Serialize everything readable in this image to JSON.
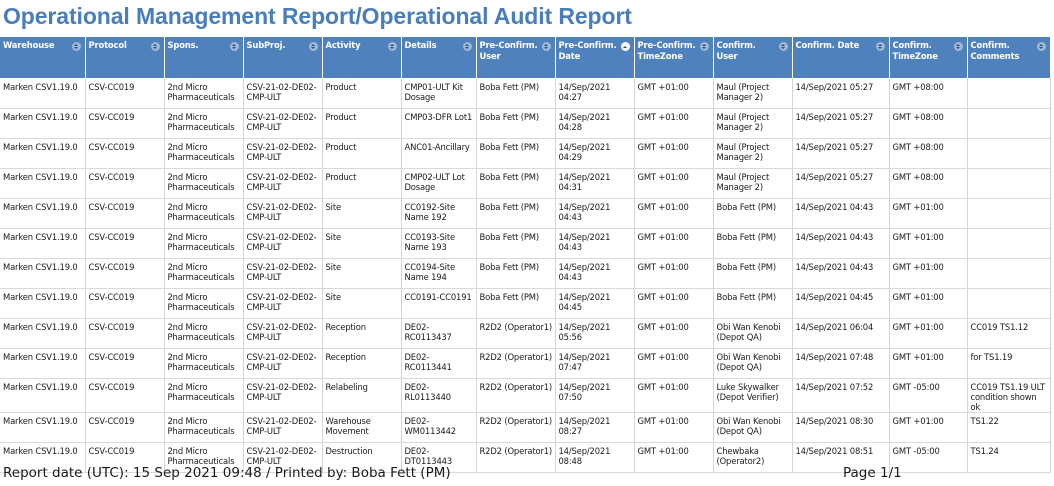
{
  "report": {
    "title": "Operational Management Report/Operational Audit Report"
  },
  "columns": [
    {
      "label": "Warehouse"
    },
    {
      "label": "Protocol"
    },
    {
      "label": "Spons."
    },
    {
      "label": "SubProj."
    },
    {
      "label": "Activity"
    },
    {
      "label": "Details"
    },
    {
      "label": "Pre-Confirm. User"
    },
    {
      "label": "Pre-Confirm. Date",
      "sorted": true
    },
    {
      "label": "Pre-Confirm. TimeZone"
    },
    {
      "label": "Confirm. User"
    },
    {
      "label": "Confirm. Date"
    },
    {
      "label": "Confirm. TimeZone"
    },
    {
      "label": "Confirm. Comments"
    }
  ],
  "rows": [
    [
      "Marken CSV1.19.0",
      "CSV-CC019",
      "2nd Micro Pharmaceuticals",
      "CSV-21-02-DE02-CMP-ULT",
      "Product",
      "CMP01-ULT Kit Dosage",
      "Boba Fett (PM)",
      "14/Sep/2021 04:27",
      "GMT +01:00",
      "Maul (Project Manager 2)",
      "14/Sep/2021 05:27",
      "GMT +08:00",
      ""
    ],
    [
      "Marken CSV1.19.0",
      "CSV-CC019",
      "2nd Micro Pharmaceuticals",
      "CSV-21-02-DE02-CMP-ULT",
      "Product",
      "CMP03-DFR Lot1",
      "Boba Fett (PM)",
      "14/Sep/2021 04:28",
      "GMT +01:00",
      "Maul (Project Manager 2)",
      "14/Sep/2021 05:27",
      "GMT +08:00",
      ""
    ],
    [
      "Marken CSV1.19.0",
      "CSV-CC019",
      "2nd Micro Pharmaceuticals",
      "CSV-21-02-DE02-CMP-ULT",
      "Product",
      "ANC01-Ancillary",
      "Boba Fett (PM)",
      "14/Sep/2021 04:29",
      "GMT +01:00",
      "Maul (Project Manager 2)",
      "14/Sep/2021 05:27",
      "GMT +08:00",
      ""
    ],
    [
      "Marken CSV1.19.0",
      "CSV-CC019",
      "2nd Micro Pharmaceuticals",
      "CSV-21-02-DE02-CMP-ULT",
      "Product",
      "CMP02-ULT Lot Dosage",
      "Boba Fett (PM)",
      "14/Sep/2021 04:31",
      "GMT +01:00",
      "Maul (Project Manager 2)",
      "14/Sep/2021 05:27",
      "GMT +08:00",
      ""
    ],
    [
      "Marken CSV1.19.0",
      "CSV-CC019",
      "2nd Micro Pharmaceuticals",
      "CSV-21-02-DE02-CMP-ULT",
      "Site",
      "CC0192-Site Name 192",
      "Boba Fett (PM)",
      "14/Sep/2021 04:43",
      "GMT +01:00",
      "Boba Fett (PM)",
      "14/Sep/2021 04:43",
      "GMT +01:00",
      ""
    ],
    [
      "Marken CSV1.19.0",
      "CSV-CC019",
      "2nd Micro Pharmaceuticals",
      "CSV-21-02-DE02-CMP-ULT",
      "Site",
      "CC0193-Site Name 193",
      "Boba Fett (PM)",
      "14/Sep/2021 04:43",
      "GMT +01:00",
      "Boba Fett (PM)",
      "14/Sep/2021 04:43",
      "GMT +01:00",
      ""
    ],
    [
      "Marken CSV1.19.0",
      "CSV-CC019",
      "2nd Micro Pharmaceuticals",
      "CSV-21-02-DE02-CMP-ULT",
      "Site",
      "CC0194-Site Name 194",
      "Boba Fett (PM)",
      "14/Sep/2021 04:43",
      "GMT +01:00",
      "Boba Fett (PM)",
      "14/Sep/2021 04:43",
      "GMT +01:00",
      ""
    ],
    [
      "Marken CSV1.19.0",
      "CSV-CC019",
      "2nd Micro Pharmaceuticals",
      "CSV-21-02-DE02-CMP-ULT",
      "Site",
      "CC0191-CC0191",
      "Boba Fett (PM)",
      "14/Sep/2021 04:45",
      "GMT +01:00",
      "Boba Fett (PM)",
      "14/Sep/2021 04:45",
      "GMT +01:00",
      ""
    ],
    [
      "Marken CSV1.19.0",
      "CSV-CC019",
      "2nd Micro Pharmaceuticals",
      "CSV-21-02-DE02-CMP-ULT",
      "Reception",
      "DE02-RC0113437",
      "R2D2 (Operator1)",
      "14/Sep/2021 05:56",
      "GMT +01:00",
      "Obi Wan Kenobi (Depot QA)",
      "14/Sep/2021 06:04",
      "GMT +01:00",
      "CC019 TS1.12"
    ],
    [
      "Marken CSV1.19.0",
      "CSV-CC019",
      "2nd Micro Pharmaceuticals",
      "CSV-21-02-DE02-CMP-ULT",
      "Reception",
      "DE02-RC0113441",
      "R2D2 (Operator1)",
      "14/Sep/2021 07:47",
      "GMT +01:00",
      "Obi Wan Kenobi (Depot QA)",
      "14/Sep/2021 07:48",
      "GMT +01:00",
      "for TS1.19"
    ],
    [
      "Marken CSV1.19.0",
      "CSV-CC019",
      "2nd Micro Pharmaceuticals",
      "CSV-21-02-DE02-CMP-ULT",
      "Relabeling",
      "DE02-RL0113440",
      "R2D2 (Operator1)",
      "14/Sep/2021 07:50",
      "GMT +01:00",
      "Luke Skywalker (Depot Verifier)",
      "14/Sep/2021 07:52",
      "GMT -05:00",
      "CC019 TS1.19 ULT condition shown ok"
    ],
    [
      "Marken CSV1.19.0",
      "CSV-CC019",
      "2nd Micro Pharmaceuticals",
      "CSV-21-02-DE02-CMP-ULT",
      "Warehouse Movement",
      "DE02-WM0113442",
      "R2D2 (Operator1)",
      "14/Sep/2021 08:27",
      "GMT +01:00",
      "Obi Wan Kenobi (Depot QA)",
      "14/Sep/2021 08:30",
      "GMT +01:00",
      "TS1.22"
    ],
    [
      "Marken CSV1.19.0",
      "CSV-CC019",
      "2nd Micro Pharmaceuticals",
      "CSV-21-02-DE02-CMP-ULT",
      "Destruction",
      "DE02-DT0113443",
      "R2D2 (Operator1)",
      "14/Sep/2021 08:48",
      "GMT +01:00",
      "Chewbaka (Operator2)",
      "14/Sep/2021 08:51",
      "GMT -05:00",
      "TS1.24"
    ]
  ],
  "footer": {
    "report_info": "Report date (UTC): 15 Sep 2021 09:48 / Printed by: Boba Fett (PM)",
    "page_info": "Page 1/1"
  }
}
